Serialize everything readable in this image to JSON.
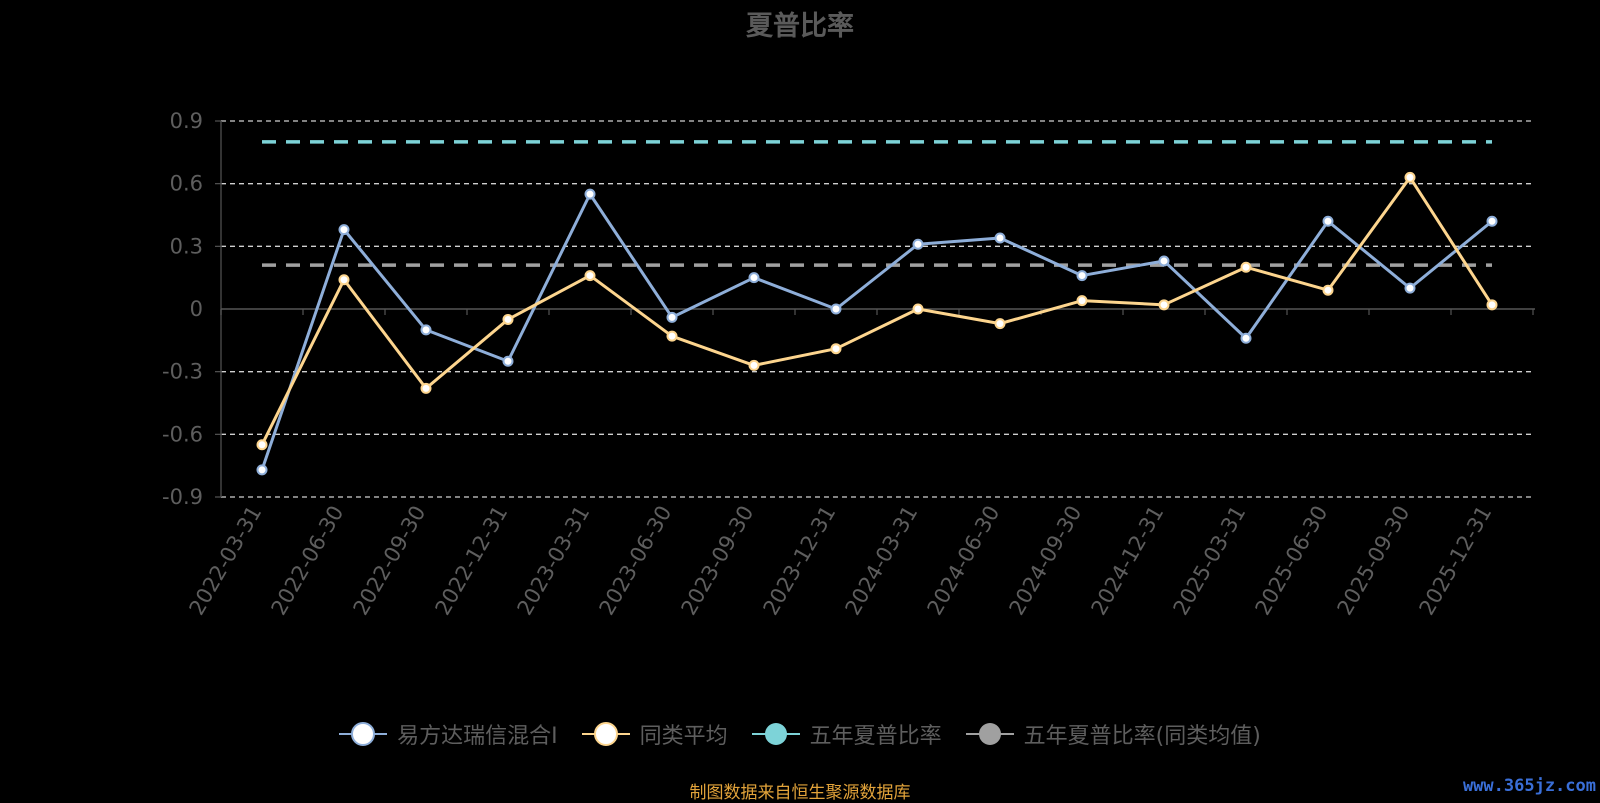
{
  "chart_data": {
    "type": "line",
    "title": "夏普比率",
    "categories": [
      "2022-03-31",
      "2022-06-30",
      "2022-09-30",
      "2022-12-31",
      "2023-03-31",
      "2023-06-30",
      "2023-09-30",
      "2023-12-31",
      "2024-03-31",
      "2024-06-30",
      "2024-09-30",
      "2024-12-31",
      "2025-03-31",
      "2025-06-30",
      "2025-09-30",
      "2025-12-31"
    ],
    "yticks": [
      0.9,
      0.6,
      0.3,
      0,
      -0.3,
      -0.6,
      -0.9
    ],
    "ylim": [
      -0.9,
      0.9
    ],
    "grid": true,
    "legend_position": "bottom",
    "series": [
      {
        "name": "易方达瑞信混合I",
        "color": "#8eaed9",
        "values": [
          -0.77,
          0.38,
          -0.1,
          -0.25,
          0.55,
          -0.04,
          0.15,
          0.0,
          0.31,
          0.34,
          0.16,
          0.23,
          -0.14,
          0.42,
          0.1,
          0.42
        ]
      },
      {
        "name": "同类平均",
        "color": "#fdd58e",
        "values": [
          -0.65,
          0.14,
          -0.38,
          -0.05,
          0.16,
          -0.13,
          -0.27,
          -0.19,
          0.0,
          -0.07,
          0.04,
          0.02,
          0.2,
          0.09,
          0.63,
          0.02
        ]
      }
    ],
    "reference_lines": [
      {
        "name": "五年夏普比率",
        "color": "#7dd3d8",
        "value": 0.8
      },
      {
        "name": "五年夏普比率(同类均值)",
        "color": "#a0a0a0",
        "value": 0.21
      }
    ]
  },
  "legend": [
    {
      "label": "易方达瑞信混合I",
      "color": "#8eaed9",
      "marker_fill": "#ffffff"
    },
    {
      "label": "同类平均",
      "color": "#fdd58e",
      "marker_fill": "#ffffff"
    },
    {
      "label": "五年夏普比率",
      "color": "#7dd3d8",
      "marker_fill": "#7dd3d8"
    },
    {
      "label": "五年夏普比率(同类均值)",
      "color": "#a0a0a0",
      "marker_fill": "#a0a0a0"
    }
  ],
  "footer": {
    "source": "制图数据来自恒生聚源数据库",
    "watermark": "www.365jz.com"
  }
}
